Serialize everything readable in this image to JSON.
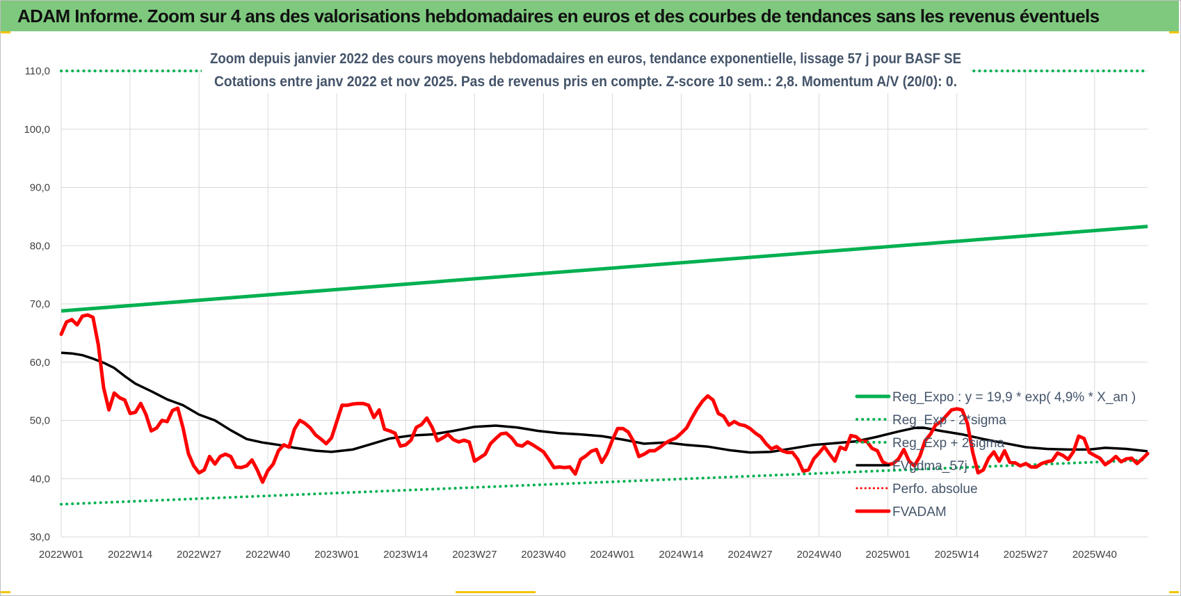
{
  "header": {
    "title": "ADAM Informe. Zoom sur 4 ans des valorisations hebdomadaires en euros et des courbes de tendances sans les revenus éventuels"
  },
  "colors": {
    "header_bg": "#7ec97e",
    "trend": "#00b050",
    "sigma": "#00b050",
    "smooth": "#000000",
    "perf": "#ff0000",
    "fvadam": "#ff0000",
    "grid": "#d9d9d9",
    "text": "#404040",
    "title_text": "#44546a"
  },
  "chart_data": {
    "type": "line",
    "title": "Zoom depuis janvier 2022 des cours moyens hebdomadaires en euros, tendance exponentielle, lissage 57 j pour BASF SE",
    "subtitle": "Cotations entre janv 2022 et nov 2025. Pas de revenus pris en compte. Z-score 10 sem.: 2,8. Momentum A/V (20/0): 0.",
    "ylim": [
      30,
      110
    ],
    "yticks": [
      "30,0",
      "40,0",
      "50,0",
      "60,0",
      "70,0",
      "80,0",
      "90,0",
      "100,0",
      "110,0"
    ],
    "xlabels": [
      "2022W01",
      "2022W14",
      "2022W27",
      "2022W40",
      "2023W01",
      "2023W14",
      "2023W27",
      "2023W40",
      "2024W01",
      "2024W14",
      "2024W27",
      "2024W40",
      "2025W01",
      "2025W14",
      "2025W27",
      "2025W40"
    ],
    "grid": true,
    "legend_position": "bottom-right",
    "series": [
      {
        "name": "Reg_Expo : y = 19,9 * exp( 4,9% *  X_an )",
        "style": "solid-thick",
        "points": [
          [
            0,
            68.8
          ],
          [
            205,
            83.3
          ]
        ]
      },
      {
        "name": "Reg_Exp - 2*sigma",
        "style": "dotted",
        "points": [
          [
            0,
            35.6
          ],
          [
            205,
            43.2
          ]
        ]
      },
      {
        "name": "Reg_Exp + 2sigma",
        "style": "dotted",
        "points": [
          [
            0,
            110.0
          ],
          [
            205,
            110.0
          ]
        ]
      },
      {
        "name": "FVgdma_57j",
        "style": "solid-medium",
        "points": [
          [
            0,
            61.6
          ],
          [
            2,
            61.5
          ],
          [
            4,
            61.2
          ],
          [
            6,
            60.6
          ],
          [
            8,
            59.9
          ],
          [
            10,
            59.0
          ],
          [
            12,
            57.6
          ],
          [
            14,
            56.3
          ],
          [
            17,
            55.0
          ],
          [
            20,
            53.6
          ],
          [
            23,
            52.6
          ],
          [
            26,
            51.0
          ],
          [
            29,
            50.0
          ],
          [
            32,
            48.3
          ],
          [
            35,
            46.8
          ],
          [
            38,
            46.2
          ],
          [
            41,
            45.8
          ],
          [
            44,
            45.3
          ],
          [
            48,
            44.8
          ],
          [
            51,
            44.6
          ],
          [
            55,
            45.0
          ],
          [
            58,
            45.8
          ],
          [
            62,
            46.9
          ],
          [
            66,
            47.4
          ],
          [
            70,
            47.6
          ],
          [
            74,
            48.2
          ],
          [
            78,
            48.9
          ],
          [
            82,
            49.1
          ],
          [
            86,
            48.8
          ],
          [
            90,
            48.2
          ],
          [
            94,
            47.8
          ],
          [
            98,
            47.6
          ],
          [
            102,
            47.3
          ],
          [
            106,
            46.7
          ],
          [
            110,
            46.0
          ],
          [
            114,
            46.2
          ],
          [
            118,
            45.8
          ],
          [
            122,
            45.5
          ],
          [
            126,
            44.9
          ],
          [
            130,
            44.5
          ],
          [
            134,
            44.6
          ],
          [
            138,
            45.2
          ],
          [
            142,
            45.8
          ],
          [
            146,
            46.1
          ],
          [
            150,
            46.4
          ],
          [
            154,
            47.2
          ],
          [
            158,
            48.1
          ],
          [
            161,
            48.7
          ],
          [
            163,
            48.7
          ],
          [
            166,
            48.2
          ],
          [
            170,
            47.6
          ],
          [
            174,
            46.8
          ],
          [
            178,
            46.1
          ],
          [
            182,
            45.4
          ],
          [
            186,
            45.1
          ],
          [
            190,
            45.0
          ],
          [
            194,
            45.0
          ],
          [
            197,
            45.3
          ],
          [
            201,
            45.1
          ],
          [
            205,
            44.7
          ]
        ]
      },
      {
        "name": "Perfo. absolue",
        "style": "dotted-red",
        "points": []
      },
      {
        "name": "FVADAM",
        "style": "solid-thick",
        "points": [
          [
            0,
            64.8
          ],
          [
            1,
            66.9
          ],
          [
            2,
            67.3
          ],
          [
            3,
            66.4
          ],
          [
            4,
            67.9
          ],
          [
            5,
            68.1
          ],
          [
            6,
            67.7
          ],
          [
            7,
            63.0
          ],
          [
            8,
            55.6
          ],
          [
            9,
            51.8
          ],
          [
            10,
            54.7
          ],
          [
            11,
            53.9
          ],
          [
            12,
            53.5
          ],
          [
            13,
            51.2
          ],
          [
            14,
            51.4
          ],
          [
            15,
            52.9
          ],
          [
            16,
            51.0
          ],
          [
            17,
            48.2
          ],
          [
            18,
            48.7
          ],
          [
            19,
            50.0
          ],
          [
            20,
            49.8
          ],
          [
            21,
            51.7
          ],
          [
            22,
            52.1
          ],
          [
            23,
            48.7
          ],
          [
            24,
            44.3
          ],
          [
            25,
            42.2
          ],
          [
            26,
            41.0
          ],
          [
            27,
            41.5
          ],
          [
            28,
            43.8
          ],
          [
            29,
            42.5
          ],
          [
            30,
            43.8
          ],
          [
            31,
            44.2
          ],
          [
            32,
            43.8
          ],
          [
            33,
            42.0
          ],
          [
            34,
            41.9
          ],
          [
            35,
            42.2
          ],
          [
            36,
            43.2
          ],
          [
            37,
            41.5
          ],
          [
            38,
            39.4
          ],
          [
            39,
            41.4
          ],
          [
            40,
            42.5
          ],
          [
            41,
            44.8
          ],
          [
            42,
            45.8
          ],
          [
            43,
            45.4
          ],
          [
            44,
            48.5
          ],
          [
            45,
            50.0
          ],
          [
            46,
            49.5
          ],
          [
            47,
            48.7
          ],
          [
            48,
            47.5
          ],
          [
            49,
            46.8
          ],
          [
            50,
            46.0
          ],
          [
            51,
            47.0
          ],
          [
            52,
            49.8
          ],
          [
            53,
            52.6
          ],
          [
            54,
            52.6
          ],
          [
            55,
            52.8
          ],
          [
            56,
            52.9
          ],
          [
            57,
            52.9
          ],
          [
            58,
            52.6
          ],
          [
            59,
            50.5
          ],
          [
            60,
            51.8
          ],
          [
            61,
            48.5
          ],
          [
            62,
            48.2
          ],
          [
            63,
            47.8
          ],
          [
            64,
            45.6
          ],
          [
            65,
            45.8
          ],
          [
            66,
            46.6
          ],
          [
            67,
            48.8
          ],
          [
            68,
            49.3
          ],
          [
            69,
            50.4
          ],
          [
            70,
            48.8
          ],
          [
            71,
            46.5
          ],
          [
            72,
            47.0
          ],
          [
            73,
            47.6
          ],
          [
            74,
            46.7
          ],
          [
            75,
            46.3
          ],
          [
            76,
            46.6
          ],
          [
            77,
            46.3
          ],
          [
            78,
            43.0
          ],
          [
            79,
            43.6
          ],
          [
            80,
            44.2
          ],
          [
            81,
            46.0
          ],
          [
            82,
            46.9
          ],
          [
            83,
            47.7
          ],
          [
            84,
            47.8
          ],
          [
            85,
            47.0
          ],
          [
            86,
            45.8
          ],
          [
            87,
            45.6
          ],
          [
            88,
            46.3
          ],
          [
            89,
            45.8
          ],
          [
            90,
            45.2
          ],
          [
            91,
            44.6
          ],
          [
            92,
            43.3
          ],
          [
            93,
            41.9
          ],
          [
            94,
            42.0
          ],
          [
            95,
            41.9
          ],
          [
            96,
            42.0
          ],
          [
            97,
            40.8
          ],
          [
            98,
            43.3
          ],
          [
            99,
            43.9
          ],
          [
            100,
            44.7
          ],
          [
            101,
            45.0
          ],
          [
            102,
            42.8
          ],
          [
            103,
            44.3
          ],
          [
            104,
            46.6
          ],
          [
            105,
            48.6
          ],
          [
            106,
            48.6
          ],
          [
            107,
            48.0
          ],
          [
            108,
            46.4
          ],
          [
            109,
            43.8
          ],
          [
            110,
            44.2
          ],
          [
            111,
            44.8
          ],
          [
            112,
            44.8
          ],
          [
            113,
            45.4
          ],
          [
            114,
            46.1
          ],
          [
            115,
            46.6
          ],
          [
            116,
            47.0
          ],
          [
            117,
            47.8
          ],
          [
            118,
            48.7
          ],
          [
            119,
            50.4
          ],
          [
            120,
            52.0
          ],
          [
            121,
            53.3
          ],
          [
            122,
            54.2
          ],
          [
            123,
            53.5
          ],
          [
            124,
            51.2
          ],
          [
            125,
            50.7
          ],
          [
            126,
            49.2
          ],
          [
            127,
            49.8
          ],
          [
            128,
            49.3
          ],
          [
            129,
            49.1
          ],
          [
            130,
            48.6
          ],
          [
            131,
            47.8
          ],
          [
            132,
            47.2
          ],
          [
            133,
            46.0
          ],
          [
            134,
            45.1
          ],
          [
            135,
            45.5
          ],
          [
            136,
            44.8
          ],
          [
            137,
            44.5
          ],
          [
            138,
            44.5
          ],
          [
            139,
            43.3
          ],
          [
            140,
            41.3
          ],
          [
            141,
            41.5
          ],
          [
            142,
            43.4
          ],
          [
            143,
            44.4
          ],
          [
            144,
            45.5
          ],
          [
            145,
            44.2
          ],
          [
            146,
            43.0
          ],
          [
            147,
            45.4
          ],
          [
            148,
            45.0
          ],
          [
            149,
            47.4
          ],
          [
            150,
            47.2
          ],
          [
            151,
            46.4
          ],
          [
            152,
            46.4
          ],
          [
            153,
            45.2
          ],
          [
            154,
            44.8
          ],
          [
            155,
            42.9
          ],
          [
            156,
            42.4
          ],
          [
            157,
            42.6
          ],
          [
            158,
            43.4
          ],
          [
            159,
            45.0
          ],
          [
            160,
            43.0
          ],
          [
            161,
            42.2
          ],
          [
            162,
            43.8
          ],
          [
            163,
            46.5
          ],
          [
            164,
            47.6
          ],
          [
            165,
            49.2
          ],
          [
            166,
            49.8
          ],
          [
            167,
            50.8
          ],
          [
            168,
            51.8
          ],
          [
            169,
            52.0
          ],
          [
            170,
            51.8
          ],
          [
            171,
            49.5
          ],
          [
            172,
            44.5
          ],
          [
            173,
            41.0
          ],
          [
            174,
            41.5
          ],
          [
            175,
            43.5
          ],
          [
            176,
            44.6
          ],
          [
            177,
            43.0
          ],
          [
            178,
            44.8
          ],
          [
            179,
            42.8
          ],
          [
            180,
            42.7
          ],
          [
            181,
            42.2
          ],
          [
            182,
            42.6
          ],
          [
            183,
            42.0
          ],
          [
            184,
            42.0
          ],
          [
            185,
            42.6
          ],
          [
            186,
            42.9
          ],
          [
            187,
            43.1
          ],
          [
            188,
            44.4
          ],
          [
            189,
            44.0
          ],
          [
            190,
            43.3
          ],
          [
            191,
            44.6
          ],
          [
            192,
            47.3
          ],
          [
            193,
            46.9
          ],
          [
            194,
            44.5
          ],
          [
            195,
            44.0
          ],
          [
            196,
            43.5
          ],
          [
            197,
            42.4
          ],
          [
            198,
            43.0
          ],
          [
            199,
            43.8
          ],
          [
            200,
            42.9
          ],
          [
            201,
            43.4
          ],
          [
            202,
            43.5
          ],
          [
            203,
            42.6
          ],
          [
            204,
            43.4
          ],
          [
            205,
            44.3
          ]
        ]
      }
    ]
  }
}
